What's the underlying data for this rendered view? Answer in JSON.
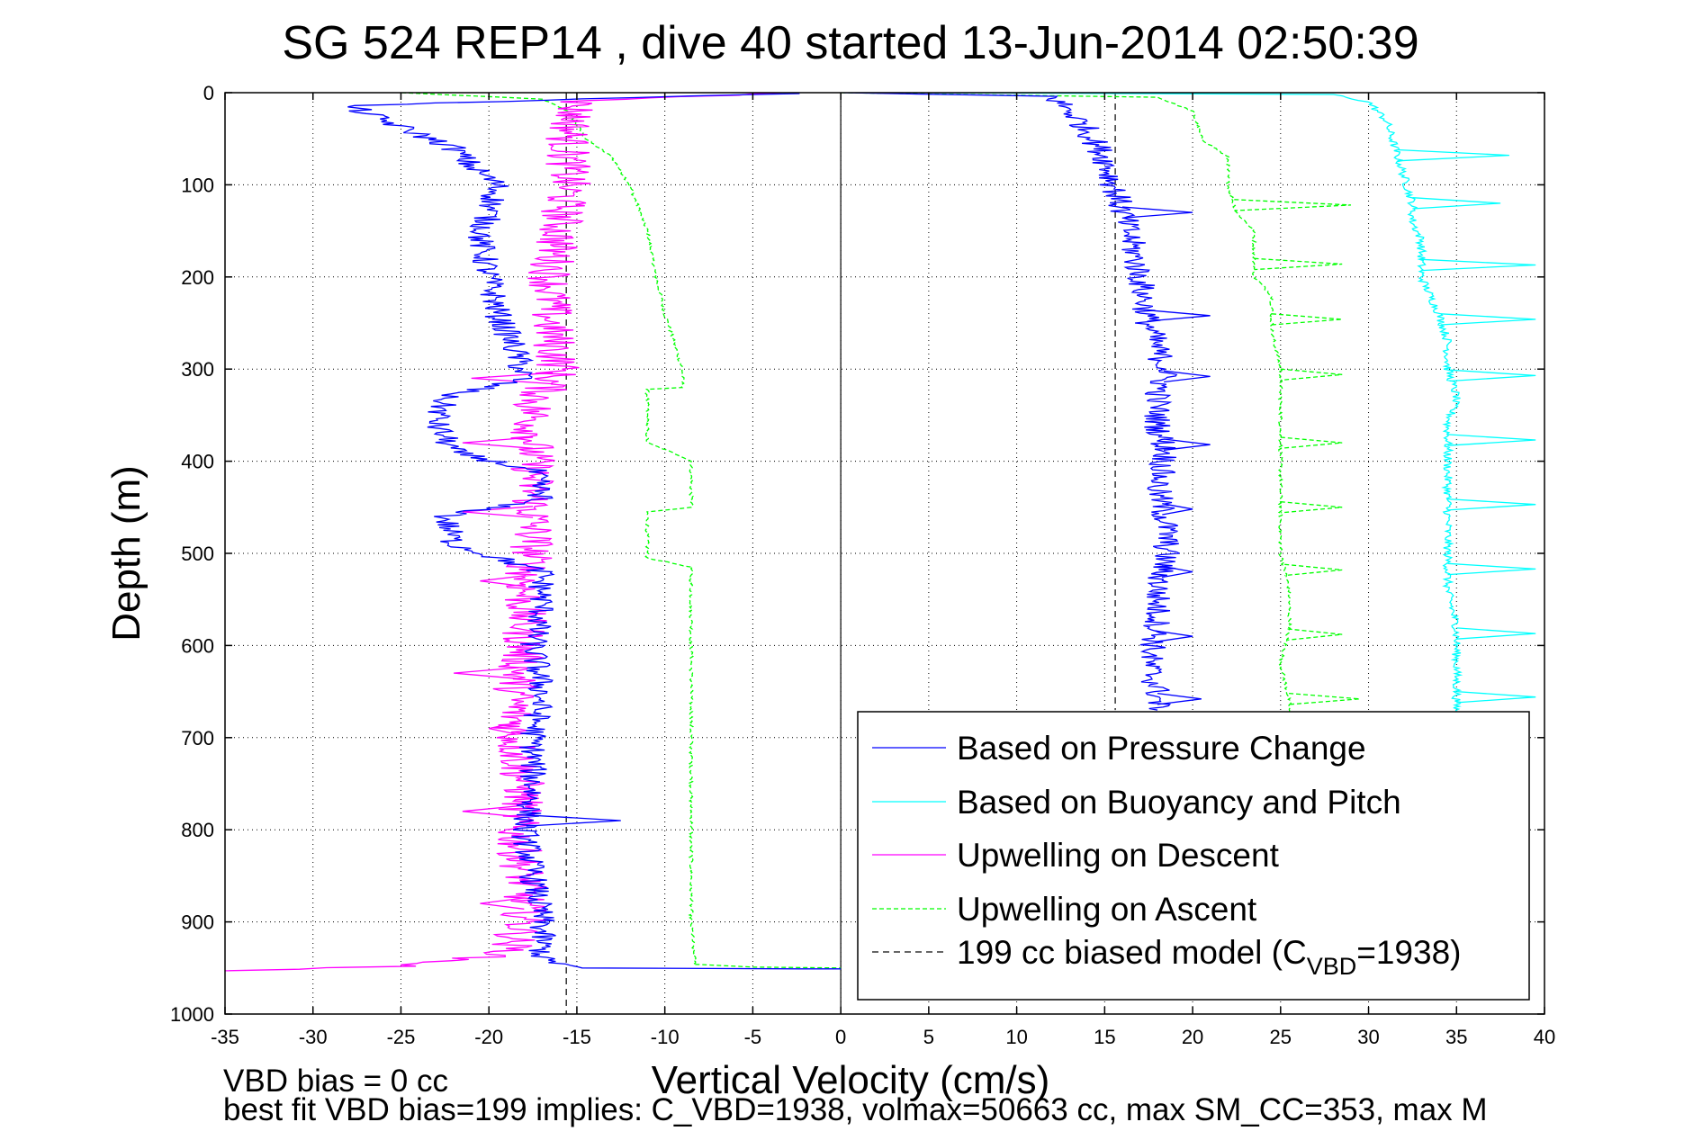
{
  "figure": {
    "title": "SG 524   REP14  , dive 40 started 13-Jun-2014 02:50:39",
    "footer_line1": "VBD bias = 0 cc",
    "footer_line2": "best fit VBD bias=199 implies: C_VBD=1938, volmax=50663 cc, max SM_CC=353, max M"
  },
  "chart_data": {
    "type": "line",
    "title": "SG 524   REP14  , dive 40 started 13-Jun-2014 02:50:39",
    "xlabel": "Vertical Velocity (cm/s)",
    "ylabel": "Depth (m)",
    "xlim": [
      -35,
      40
    ],
    "ylim": [
      0,
      1000
    ],
    "y_reversed": true,
    "grid": true,
    "xticks": [
      -35,
      -30,
      -25,
      -20,
      -15,
      -10,
      -5,
      0,
      5,
      10,
      15,
      20,
      25,
      30,
      35,
      40
    ],
    "yticks": [
      0,
      100,
      200,
      300,
      400,
      500,
      600,
      700,
      800,
      900,
      1000
    ],
    "legend_position": "bottom-right",
    "series": [
      {
        "name": "Based on Pressure Change",
        "color": "#0000ff",
        "style": "solid",
        "noise": 0.8,
        "segments": [
          [
            [
              -3,
              1
            ],
            [
              -28,
              14
            ],
            [
              -26,
              30
            ],
            [
              -24,
              45
            ],
            [
              -22,
              60
            ],
            [
              -21,
              80
            ],
            [
              -19.5,
              100
            ],
            [
              -20,
              130
            ],
            [
              -20.5,
              160
            ],
            [
              -20,
              200
            ],
            [
              -19.5,
              240
            ],
            [
              -18.5,
              280
            ],
            [
              -18,
              310
            ],
            [
              -22.5,
              330
            ],
            [
              -23,
              360
            ],
            [
              -22,
              390
            ],
            [
              -17.5,
              410
            ],
            [
              -17,
              440
            ],
            [
              -22.5,
              460
            ],
            [
              -22,
              490
            ],
            [
              -17,
              520
            ],
            [
              -17,
              560
            ],
            [
              -17.5,
              600
            ],
            [
              -17,
              650
            ],
            [
              -17.5,
              700
            ],
            [
              -17.5,
              760
            ],
            [
              -18,
              800
            ],
            [
              -17.5,
              850
            ],
            [
              -17,
              900
            ],
            [
              -17,
              940
            ],
            [
              -15,
              950
            ],
            [
              -3,
              951
            ],
            [
              0,
              951
            ]
          ],
          [
            [
              0,
              0
            ],
            [
              12,
              4
            ],
            [
              13,
              20
            ],
            [
              14,
              40
            ],
            [
              15,
              70
            ],
            [
              15.5,
              100
            ],
            [
              16,
              130
            ],
            [
              16.5,
              160
            ],
            [
              17,
              200
            ],
            [
              17.5,
              250
            ],
            [
              18,
              280
            ],
            [
              18.5,
              300
            ],
            [
              18,
              330
            ],
            [
              18,
              360
            ],
            [
              18.5,
              390
            ],
            [
              18,
              430
            ],
            [
              18.5,
              470
            ],
            [
              18.5,
              500
            ],
            [
              18,
              540
            ],
            [
              18,
              580
            ],
            [
              17.5,
              620
            ],
            [
              18,
              650
            ],
            [
              18,
              670
            ]
          ]
        ],
        "spikes": [
          [
            -12.5,
            790
          ],
          [
            20,
            130
          ],
          [
            21,
            242
          ],
          [
            21,
            308
          ],
          [
            21,
            382
          ],
          [
            20,
            452
          ],
          [
            20,
            520
          ],
          [
            20,
            590
          ],
          [
            20.5,
            658
          ]
        ]
      },
      {
        "name": "Based on Buoyancy and Pitch",
        "color": "#00ffff",
        "style": "solid",
        "noise": 0.25,
        "segments": [
          [
            [
              5,
              0
            ],
            [
              28,
              2
            ],
            [
              30,
              10
            ],
            [
              31,
              30
            ],
            [
              31.5,
              60
            ],
            [
              32,
              90
            ],
            [
              32.5,
              120
            ],
            [
              32.5,
              140
            ],
            [
              33,
              160
            ],
            [
              33,
              200
            ],
            [
              34,
              240
            ],
            [
              34.5,
              270
            ],
            [
              34.5,
              300
            ],
            [
              35,
              330
            ],
            [
              34.5,
              360
            ],
            [
              34.5,
              400
            ],
            [
              34.5,
              430
            ],
            [
              34.5,
              470
            ],
            [
              34.5,
              500
            ],
            [
              34.5,
              540
            ],
            [
              35,
              580
            ],
            [
              35,
              620
            ],
            [
              35,
              650
            ],
            [
              35,
              672
            ]
          ]
        ],
        "spikes": [
          [
            38,
            68
          ],
          [
            37.5,
            120
          ],
          [
            39.5,
            187
          ],
          [
            39.5,
            246
          ],
          [
            39.5,
            307
          ],
          [
            39.5,
            377
          ],
          [
            39.5,
            447
          ],
          [
            39.5,
            517
          ],
          [
            39.5,
            587
          ],
          [
            39.5,
            656
          ]
        ]
      },
      {
        "name": "Upwelling on Descent",
        "color": "#ff00ff",
        "style": "solid",
        "noise": 1.3,
        "segments": [
          [
            [
              -3,
              0
            ],
            [
              -15,
              10
            ],
            [
              -15.5,
              50
            ],
            [
              -15.5,
              100
            ],
            [
              -16,
              150
            ],
            [
              -16.5,
              200
            ],
            [
              -16.5,
              250
            ],
            [
              -16,
              300
            ],
            [
              -17.5,
              340
            ],
            [
              -17.5,
              390
            ],
            [
              -17.5,
              440
            ],
            [
              -17.5,
              490
            ],
            [
              -18,
              540
            ],
            [
              -18,
              600
            ],
            [
              -18.5,
              650
            ],
            [
              -18.5,
              700
            ],
            [
              -18,
              760
            ],
            [
              -18.5,
              800
            ],
            [
              -18,
              850
            ],
            [
              -18,
              900
            ],
            [
              -19,
              935
            ],
            [
              -25,
              948
            ],
            [
              -35,
              953
            ]
          ]
        ],
        "spikes": [
          [
            -21,
            310
          ],
          [
            -21.5,
            380
          ],
          [
            -21.5,
            455
          ],
          [
            -20.5,
            530
          ],
          [
            -22,
            630
          ],
          [
            -20,
            690
          ],
          [
            -21.5,
            780
          ],
          [
            -20.5,
            880
          ]
        ]
      },
      {
        "name": "Upwelling on Ascent",
        "color": "#00ff00",
        "style": "dashed",
        "noise": 0.1,
        "segments": [
          [
            [
              -25,
              0
            ],
            [
              -17,
              7
            ],
            [
              -15.5,
              20
            ],
            [
              -14.5,
              50
            ],
            [
              -13,
              70
            ],
            [
              -12,
              100
            ],
            [
              -11,
              150
            ],
            [
              -10.5,
              200
            ],
            [
              -10,
              240
            ],
            [
              -9.5,
              270
            ],
            [
              -9,
              300
            ],
            [
              -9,
              320
            ],
            [
              -11,
              322
            ],
            [
              -11,
              380
            ],
            [
              -9,
              395
            ],
            [
              -8.5,
              400
            ],
            [
              -8.5,
              450
            ],
            [
              -11,
              455
            ],
            [
              -11,
              505
            ],
            [
              -8.5,
              515
            ],
            [
              -8.5,
              600
            ],
            [
              -8.5,
              700
            ],
            [
              -8.5,
              800
            ],
            [
              -8.5,
              900
            ],
            [
              -8.3,
              946
            ],
            [
              -5,
              949
            ],
            [
              0,
              950
            ]
          ],
          [
            [
              0,
              0
            ],
            [
              18,
              5
            ],
            [
              20,
              20
            ],
            [
              20.5,
              50
            ],
            [
              22,
              70
            ],
            [
              22,
              100
            ],
            [
              22.5,
              130
            ],
            [
              23.5,
              150
            ],
            [
              23.5,
              200
            ],
            [
              24.5,
              220
            ],
            [
              24.5,
              260
            ],
            [
              25,
              300
            ],
            [
              25,
              340
            ],
            [
              25,
              380
            ],
            [
              25,
              420
            ],
            [
              25,
              460
            ],
            [
              25,
              500
            ],
            [
              25.5,
              540
            ],
            [
              25.5,
              580
            ],
            [
              25,
              620
            ],
            [
              25.5,
              660
            ],
            [
              25.5,
              672
            ]
          ]
        ],
        "spikes": [
          [
            29,
            122
          ],
          [
            28.5,
            186
          ],
          [
            28.5,
            246
          ],
          [
            28.5,
            306
          ],
          [
            28.5,
            380
          ],
          [
            28.5,
            450
          ],
          [
            28.5,
            518
          ],
          [
            28.5,
            588
          ],
          [
            29.5,
            658
          ]
        ]
      },
      {
        "name": "199 cc biased model (C_VBD=1938)",
        "color": "#333333",
        "style": "dashed",
        "segments": [
          [
            [
              -15.6,
              0
            ],
            [
              -15.6,
              1000
            ]
          ],
          [
            [
              15.6,
              0
            ],
            [
              15.6,
              670
            ]
          ]
        ]
      }
    ],
    "zero_line": {
      "x": 0,
      "color": "#000000"
    },
    "legend": [
      {
        "label": "Based on Pressure Change",
        "color": "#0000ff",
        "style": "solid"
      },
      {
        "label": "Based on Buoyancy and Pitch",
        "color": "#00ffff",
        "style": "solid"
      },
      {
        "label": "Upwelling on Descent",
        "color": "#ff00ff",
        "style": "solid"
      },
      {
        "label": "Upwelling on Ascent",
        "color": "#00ff00",
        "style": "dashed"
      },
      {
        "label_prefix": "199 cc biased model (C",
        "label_sub": "VBD",
        "label_suffix": "=1938)",
        "color": "#333333",
        "style": "dashed"
      }
    ]
  }
}
